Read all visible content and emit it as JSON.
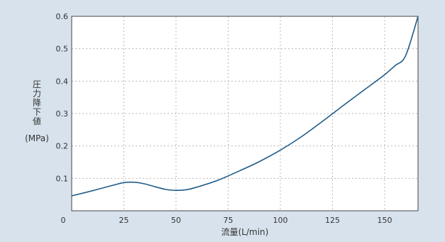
{
  "chart_data": {
    "type": "line",
    "title": "",
    "xlabel": "流量(L/min)",
    "ylabel": [
      "圧",
      "力",
      "降",
      "下",
      "値",
      "(MPa)"
    ],
    "xlim": [
      0,
      166
    ],
    "ylim": [
      0,
      0.6
    ],
    "grid": true,
    "x_ticks": [
      0,
      25,
      50,
      75,
      100,
      125,
      150
    ],
    "y_ticks": [
      0.1,
      0.2,
      0.3,
      0.4,
      0.5,
      0.6
    ],
    "colors": {
      "line": "#1f5c8a",
      "background": "#d7e2ed",
      "plot_bg": "#ffffff",
      "grid": "#b8b8b8"
    },
    "series": [
      {
        "x": [
          0,
          10,
          20,
          25,
          30,
          35,
          40,
          45,
          50,
          55,
          60,
          70,
          80,
          90,
          100,
          110,
          120,
          130,
          140,
          150,
          155,
          160,
          166
        ],
        "y": [
          0.046,
          0.062,
          0.079,
          0.087,
          0.088,
          0.083,
          0.074,
          0.066,
          0.063,
          0.065,
          0.073,
          0.094,
          0.122,
          0.152,
          0.187,
          0.228,
          0.275,
          0.324,
          0.372,
          0.42,
          0.448,
          0.478,
          0.6
        ]
      }
    ]
  }
}
